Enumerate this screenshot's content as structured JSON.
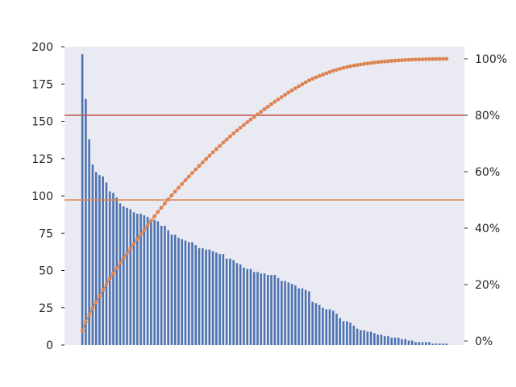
{
  "chart_data": {
    "type": "bar",
    "title": "",
    "xlabel": "",
    "ylabel": "",
    "ylim": [
      0,
      200
    ],
    "y_ticks": [
      "0",
      "25",
      "50",
      "75",
      "100",
      "125",
      "150",
      "175",
      "200"
    ],
    "y2lim": [
      0,
      100
    ],
    "y2_ticks": [
      "0%",
      "20%",
      "40%",
      "60%",
      "80%",
      "100%"
    ],
    "grid": false,
    "legend": "none",
    "series": [
      {
        "type": "bar",
        "color": "#4c72b0",
        "values": [
          195,
          165,
          138,
          121,
          116,
          114,
          113,
          109,
          103,
          102,
          99,
          95,
          93,
          92,
          91,
          89,
          88,
          88,
          87,
          86,
          84,
          84,
          83,
          80,
          80,
          77,
          74,
          74,
          72,
          71,
          70,
          69,
          69,
          67,
          65,
          65,
          64,
          64,
          63,
          62,
          61,
          61,
          58,
          58,
          57,
          55,
          54,
          52,
          51,
          51,
          49,
          49,
          48,
          48,
          47,
          47,
          47,
          45,
          43,
          43,
          42,
          41,
          40,
          38,
          38,
          37,
          36,
          29,
          28,
          27,
          25,
          24,
          24,
          23,
          21,
          18,
          16,
          16,
          15,
          13,
          11,
          10,
          10,
          9,
          9,
          8,
          7,
          7,
          6,
          6,
          5,
          5,
          5,
          4,
          4,
          3,
          3,
          2,
          2,
          2,
          2,
          2,
          1,
          1,
          1,
          1,
          1
        ]
      },
      {
        "type": "line",
        "axis": "right",
        "color": "#dd8452",
        "marker": "circle",
        "note": "cumulative percentage of bar values"
      }
    ],
    "reference_lines": [
      {
        "axis": "right",
        "value": 80,
        "color": "#c44e52"
      },
      {
        "axis": "right",
        "value": 50,
        "color": "#dd8452"
      }
    ],
    "colors": {
      "plot_background": "#eaeaf2",
      "tick_text": "#262626"
    }
  }
}
